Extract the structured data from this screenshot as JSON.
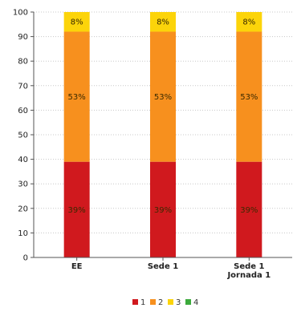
{
  "chart_data": {
    "type": "bar",
    "stacked": true,
    "categories": [
      [
        "EE"
      ],
      [
        "Sede 1"
      ],
      [
        "Sede 1",
        "Jornada 1"
      ]
    ],
    "series": [
      {
        "name": "1",
        "color": "#d0191e",
        "values": [
          39,
          39,
          39
        ],
        "labels": [
          "39%",
          "39%",
          "39%"
        ]
      },
      {
        "name": "2",
        "color": "#f7901e",
        "values": [
          53,
          53,
          53
        ],
        "labels": [
          "53%",
          "53%",
          "53%"
        ]
      },
      {
        "name": "3",
        "color": "#fcd40a",
        "values": [
          8,
          8,
          8
        ],
        "labels": [
          "8%",
          "8%",
          "8%"
        ]
      },
      {
        "name": "4",
        "color": "#3caa3c",
        "values": [
          0,
          0,
          0
        ],
        "labels": [
          "",
          "",
          ""
        ]
      }
    ],
    "y_ticks": [
      "0",
      "10",
      "20",
      "30",
      "40",
      "50",
      "60",
      "70",
      "80",
      "90",
      "100"
    ],
    "ylim": [
      0,
      100
    ],
    "grid": true,
    "legend": "bottom-center"
  }
}
